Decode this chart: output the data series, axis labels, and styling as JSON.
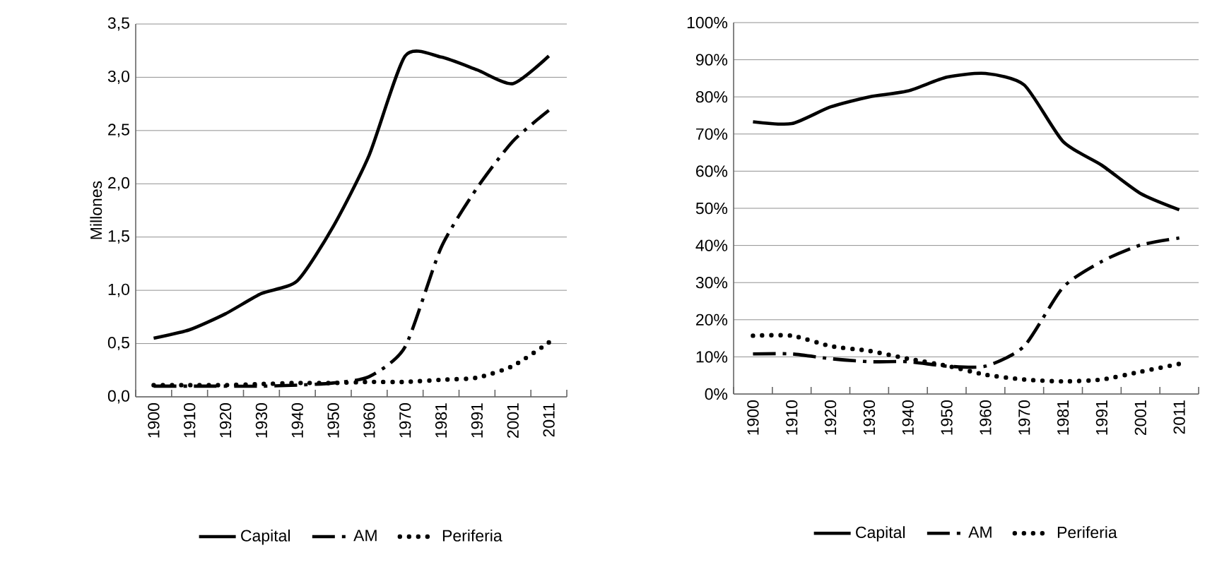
{
  "chart_data": [
    {
      "type": "line",
      "ylabel": "Millones",
      "categories": [
        "1900",
        "1910",
        "1920",
        "1930",
        "1940",
        "1950",
        "1960",
        "1970",
        "1981",
        "1991",
        "2001",
        "2011"
      ],
      "series": [
        {
          "name": "Capital",
          "color": "#000000",
          "line_style": "solid",
          "values": [
            0.55,
            0.63,
            0.78,
            0.97,
            1.09,
            1.6,
            2.27,
            3.2,
            3.19,
            3.07,
            2.94,
            3.2
          ]
        },
        {
          "name": "AM",
          "color": "#000000",
          "line_style": "dashdot",
          "values": [
            0.1,
            0.1,
            0.1,
            0.1,
            0.11,
            0.13,
            0.19,
            0.47,
            1.4,
            1.96,
            2.4,
            2.69
          ]
        },
        {
          "name": "Periferia",
          "color": "#000000",
          "line_style": "dotted",
          "values": [
            0.11,
            0.11,
            0.11,
            0.12,
            0.13,
            0.13,
            0.14,
            0.14,
            0.16,
            0.18,
            0.29,
            0.51
          ]
        }
      ],
      "ylim": [
        0,
        3.5
      ],
      "yticks": [
        {
          "value": 0,
          "label": "0,0"
        },
        {
          "value": 0.5,
          "label": "0,5"
        },
        {
          "value": 1,
          "label": "1,0"
        },
        {
          "value": 1.5,
          "label": "1,5"
        },
        {
          "value": 2,
          "label": "2,0"
        },
        {
          "value": 2.5,
          "label": "2,5"
        },
        {
          "value": 3,
          "label": "3,0"
        },
        {
          "value": 3.5,
          "label": "3,5"
        }
      ],
      "grid": "y",
      "legend": "bottom"
    },
    {
      "type": "line",
      "categories": [
        "1900",
        "1910",
        "1920",
        "1930",
        "1940",
        "1950",
        "1960",
        "1970",
        "1981",
        "1991",
        "2001",
        "2011"
      ],
      "series": [
        {
          "name": "Capital",
          "color": "#000000",
          "line_style": "solid",
          "values": [
            73.3,
            72.8,
            77.3,
            80,
            81.6,
            85.3,
            86.3,
            83.2,
            68,
            61.6,
            54,
            49.6
          ]
        },
        {
          "name": "AM",
          "color": "#000000",
          "line_style": "dashdot",
          "values": [
            10.8,
            10.8,
            9.5,
            8.7,
            8.7,
            7.5,
            7.5,
            12.9,
            28.7,
            35.7,
            40.1,
            42
          ]
        },
        {
          "name": "Periferia",
          "color": "#000000",
          "line_style": "dotted",
          "values": [
            15.7,
            15.7,
            12.9,
            11.6,
            9.5,
            7.6,
            5.2,
            3.9,
            3.4,
            3.9,
            6,
            8.1
          ]
        }
      ],
      "ylim": [
        0,
        100
      ],
      "yticks": [
        {
          "value": 0,
          "label": "0%"
        },
        {
          "value": 10,
          "label": "10%"
        },
        {
          "value": 20,
          "label": "20%"
        },
        {
          "value": 30,
          "label": "30%"
        },
        {
          "value": 40,
          "label": "40%"
        },
        {
          "value": 50,
          "label": "50%"
        },
        {
          "value": 60,
          "label": "60%"
        },
        {
          "value": 70,
          "label": "70%"
        },
        {
          "value": 80,
          "label": "80%"
        },
        {
          "value": 90,
          "label": "90%"
        },
        {
          "value": 100,
          "label": "100%"
        }
      ],
      "grid": "y",
      "legend": "bottom"
    }
  ]
}
